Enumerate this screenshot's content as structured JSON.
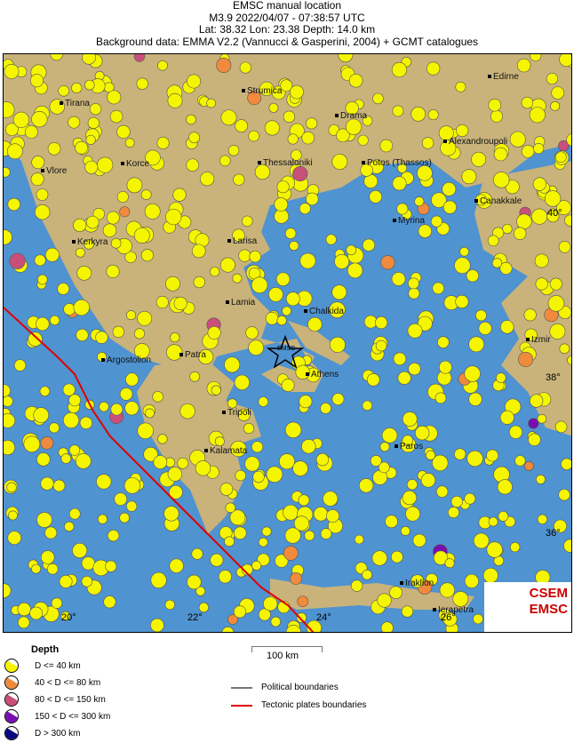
{
  "header": {
    "line1": "EMSC manual location",
    "line2": "M3.9  2022/04/07 - 07:38:57 UTC",
    "line3": "Lat: 38.32    Lon:  23.38     Depth:  14.0 km",
    "line4": "Background data: EMMA V2.2 (Vannucci & Gasperini, 2004) + GCMT catalogues"
  },
  "map": {
    "cities": [
      "Edirne",
      "Tirana",
      "Strumica",
      "Drama",
      "Alexandroupoli",
      "Korce",
      "Thessaloniki",
      "Potos (Thassos)",
      "Vlore",
      "Canakkale",
      "Myrina",
      "Kerkyra",
      "Larisa",
      "Lamia",
      "Chalkida",
      "Izmir",
      "Argostolion",
      "Patra",
      "Athens",
      "Tripoli",
      "Kalamata",
      "Paros",
      "Iraklion",
      "Ierapetra"
    ],
    "lon_labels": [
      "20°",
      "22°",
      "24°",
      "26°"
    ],
    "lat_labels": [
      "40°",
      "38°",
      "36°"
    ],
    "epicenter_label": "EMSC",
    "logo": "CSEM EMSC",
    "colors": {
      "sea": "#4f93d0",
      "land": "#c9b37a",
      "plate_boundary": "#e00000",
      "political": "#777777"
    }
  },
  "scale": {
    "label": "100 km"
  },
  "legend": {
    "title": "Depth",
    "items": [
      {
        "label": "D <= 40 km",
        "color": "#f5f500"
      },
      {
        "label": "40 < D <= 80 km",
        "color": "#f08a3c"
      },
      {
        "label": "80 < D <= 150 km",
        "color": "#c84f7a"
      },
      {
        "label": "150 < D <= 300 km",
        "color": "#7a0fb0"
      },
      {
        "label": "D > 300 km",
        "color": "#0a0a80"
      }
    ],
    "lines": [
      {
        "label": "Political boundaries",
        "color": "#777777"
      },
      {
        "label": "Tectonic plates boundaries",
        "color": "#e00000"
      }
    ]
  }
}
